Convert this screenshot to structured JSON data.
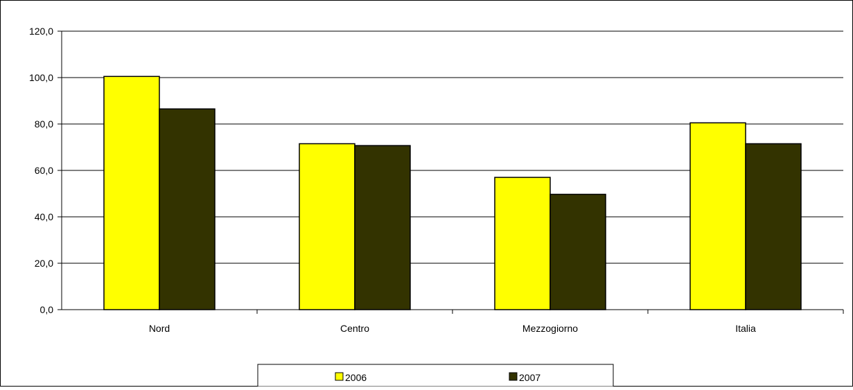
{
  "chart_data": {
    "type": "bar",
    "categories": [
      "Nord",
      "Centro",
      "Mezzogiorno",
      "Italia"
    ],
    "series": [
      {
        "name": "2006",
        "values": [
          100.5,
          71.5,
          57.0,
          80.5
        ],
        "color": "#FFFF00"
      },
      {
        "name": "2007",
        "values": [
          86.5,
          70.7,
          49.7,
          71.5
        ],
        "color": "#333300"
      }
    ],
    "yticks": [
      "0,0",
      "20,0",
      "40,0",
      "60,0",
      "80,0",
      "100,0",
      "120,0"
    ],
    "ylim": [
      0,
      120
    ],
    "ytick_step": 20,
    "grid": true,
    "legend_position": "bottom"
  }
}
